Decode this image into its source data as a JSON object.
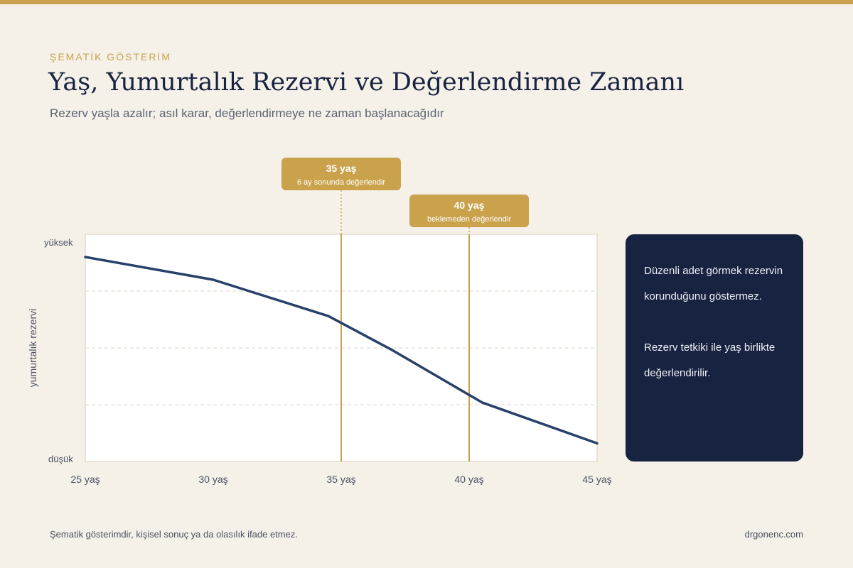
{
  "header": {
    "eyebrow": "ŞEMATİK GÖSTERİM",
    "title": "Yaş, Yumurtalık Rezervi ve Değerlendirme Zamanı",
    "subtitle": "Rezerv yaşla azalır; asıl karar, değerlendirmeye ne zaman başlanacağıdır"
  },
  "chart_data": {
    "type": "line",
    "x": [
      25,
      30,
      34.5,
      37,
      40.5,
      45
    ],
    "y": [
      0.9,
      0.8,
      0.64,
      0.49,
      0.26,
      0.08
    ],
    "xlim": [
      25,
      45
    ],
    "ylim": [
      0,
      1
    ],
    "xticks": [
      25,
      30,
      35,
      40,
      45
    ],
    "xtick_labels": [
      "25 yaş",
      "30 yaş",
      "35 yaş",
      "40 yaş",
      "45 yaş"
    ],
    "ytick_labels": {
      "top": "yüksek",
      "bottom": "düşük"
    },
    "ylabel": "yumurtalık rezervi",
    "grid": "horizontal dashed",
    "colors": {
      "line": "#27416b",
      "marker": "#c9a24b"
    },
    "markers": [
      {
        "x": 35,
        "title": "35 yaş",
        "subtitle": "6 ay sonunda değerlendir"
      },
      {
        "x": 40,
        "title": "40 yaş",
        "subtitle": "beklemeden değerlendir"
      }
    ]
  },
  "side_panel": {
    "text_1": "Düzenli adet görmek rezervin korunduğunu göstermez.",
    "text_2": "Rezerv tetkiki ile yaş birlikte değerlendirilir."
  },
  "footer": {
    "note": "Şematik gösterimdir, kişisel sonuç ya da olasılık ifade etmez.",
    "site": "drgonenc.com"
  },
  "colors": {
    "background": "#f5f0e8",
    "accent_gold": "#c9a24b",
    "navy": "#172340"
  }
}
